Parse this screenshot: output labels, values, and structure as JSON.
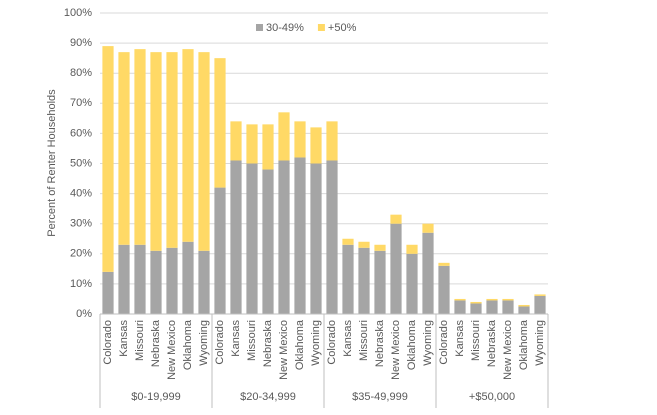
{
  "chart_data": {
    "type": "stacked_bar",
    "y_label": "Percent of Renter Households",
    "groups": [
      "$0-19,999",
      "$20-34,999",
      "$35-49,999",
      "+$50,000"
    ],
    "categories": [
      "Colorado",
      "Kansas",
      "Missouri",
      "Nebraska",
      "New Mexico",
      "Oklahoma",
      "Wyoming",
      "Colorado",
      "Kansas",
      "Missouri",
      "Nebraska",
      "New Mexico",
      "Oklahoma",
      "Wyoming",
      "Colorado",
      "Kansas",
      "Missouri",
      "Nebraska",
      "New Mexico",
      "Oklahoma",
      "Wyoming",
      "Colorado",
      "Kansas",
      "Missouri",
      "Nebraska",
      "New Mexico",
      "Oklahoma",
      "Wyoming"
    ],
    "series": [
      {
        "name": "30-49%",
        "color": "#a5a5a5",
        "values": [
          14,
          23,
          23,
          21,
          22,
          24,
          21,
          42,
          51,
          50,
          48,
          51,
          52,
          50,
          51,
          23,
          22,
          21,
          30,
          20,
          27,
          16,
          4.5,
          3.5,
          4.5,
          4.5,
          2.5,
          6
        ]
      },
      {
        "name": "+50%",
        "color": "#ffd966",
        "values": [
          75,
          64,
          65,
          66,
          65,
          64,
          66,
          43,
          13,
          13,
          15,
          16,
          12,
          12,
          13,
          2,
          2,
          2,
          3,
          3,
          3,
          1,
          0.5,
          0.5,
          0.5,
          0.5,
          0.5,
          0.5
        ]
      }
    ],
    "ylim": [
      0,
      100
    ],
    "yticks": [
      {
        "value": 0,
        "label": "0%"
      },
      {
        "value": 10,
        "label": "10%"
      },
      {
        "value": 20,
        "label": "20%"
      },
      {
        "value": 30,
        "label": "30%"
      },
      {
        "value": 40,
        "label": "40%"
      },
      {
        "value": 50,
        "label": "50%"
      },
      {
        "value": 60,
        "label": "60%"
      },
      {
        "value": 70,
        "label": "70%"
      },
      {
        "value": 80,
        "label": "80%"
      },
      {
        "value": 90,
        "label": "90%"
      },
      {
        "value": 100,
        "label": "100%"
      }
    ],
    "grid": true,
    "legend": "top"
  }
}
